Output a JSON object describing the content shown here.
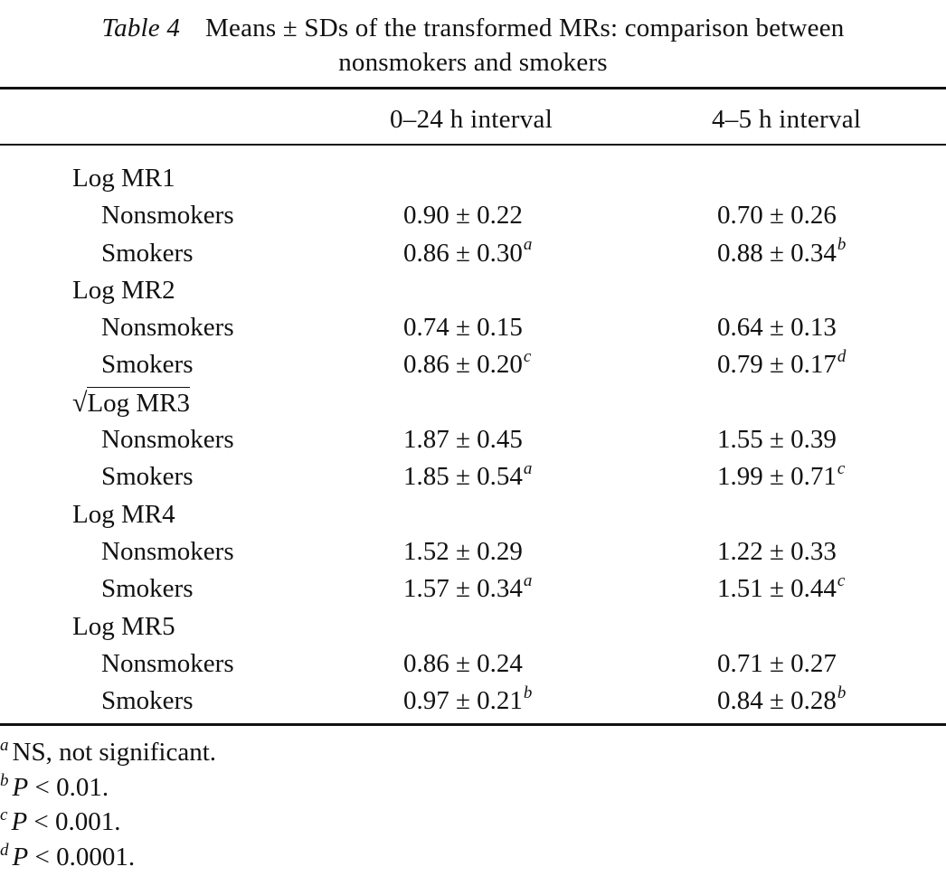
{
  "caption": {
    "label": "Table 4",
    "line1": "Means ± SDs of the transformed MRs: comparison between",
    "line2": "nonsmokers and smokers"
  },
  "columns": {
    "c1": "0–24 h interval",
    "c2": "4–5 h interval"
  },
  "groups": [
    {
      "label": "Log MR1",
      "sqrt": false,
      "rows": [
        {
          "label": "Nonsmokers",
          "v1": "0.90 ± 0.22",
          "f1": "",
          "v2": "0.70 ± 0.26",
          "f2": ""
        },
        {
          "label": "Smokers",
          "v1": "0.86 ± 0.30",
          "f1": "a",
          "v2": "0.88 ± 0.34",
          "f2": "b"
        }
      ]
    },
    {
      "label": "Log MR2",
      "sqrt": false,
      "rows": [
        {
          "label": "Nonsmokers",
          "v1": "0.74 ± 0.15",
          "f1": "",
          "v2": "0.64 ± 0.13",
          "f2": ""
        },
        {
          "label": "Smokers",
          "v1": "0.86 ± 0.20",
          "f1": "c",
          "v2": "0.79 ± 0.17",
          "f2": "d"
        }
      ]
    },
    {
      "label": "Log MR3",
      "sqrt": true,
      "rows": [
        {
          "label": "Nonsmokers",
          "v1": "1.87 ± 0.45",
          "f1": "",
          "v2": "1.55 ± 0.39",
          "f2": ""
        },
        {
          "label": "Smokers",
          "v1": "1.85 ± 0.54",
          "f1": "a",
          "v2": "1.99 ± 0.71",
          "f2": "c"
        }
      ]
    },
    {
      "label": "Log MR4",
      "sqrt": false,
      "rows": [
        {
          "label": "Nonsmokers",
          "v1": "1.52 ± 0.29",
          "f1": "",
          "v2": "1.22 ± 0.33",
          "f2": ""
        },
        {
          "label": "Smokers",
          "v1": "1.57 ± 0.34",
          "f1": "a",
          "v2": "1.51 ± 0.44",
          "f2": "c"
        }
      ]
    },
    {
      "label": "Log MR5",
      "sqrt": false,
      "rows": [
        {
          "label": "Nonsmokers",
          "v1": "0.86 ± 0.24",
          "f1": "",
          "v2": "0.71 ± 0.27",
          "f2": ""
        },
        {
          "label": "Smokers",
          "v1": "0.97 ± 0.21",
          "f1": "b",
          "v2": "0.84 ± 0.28",
          "f2": "b"
        }
      ]
    }
  ],
  "footnotes": [
    {
      "mark": "a",
      "text_italic": "",
      "text": "NS, not significant."
    },
    {
      "mark": "b",
      "text_italic": "P",
      "text": " < 0.01."
    },
    {
      "mark": "c",
      "text_italic": "P",
      "text": " < 0.001."
    },
    {
      "mark": "d",
      "text_italic": "P",
      "text": " < 0.0001."
    }
  ]
}
